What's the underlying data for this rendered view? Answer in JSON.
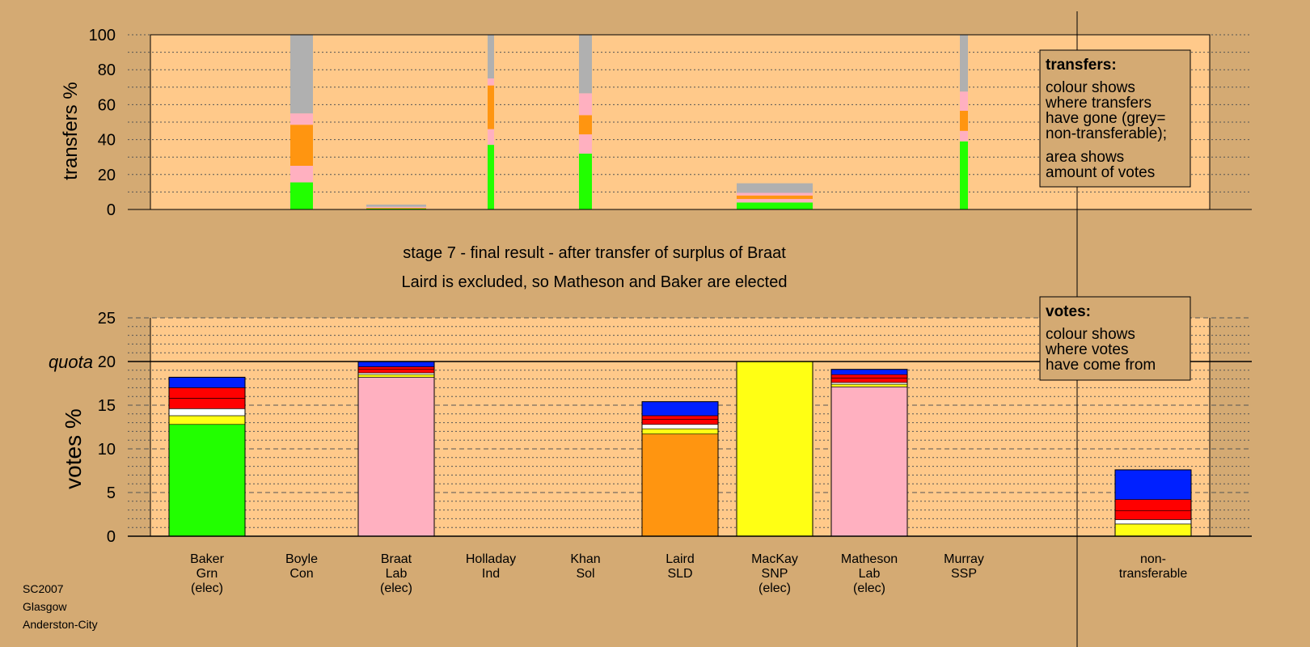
{
  "chart_data": [
    {
      "type": "bar",
      "subtype": "stacked",
      "ylabel": "transfers %",
      "ylim": [
        0,
        100
      ],
      "yticks": [
        0,
        20,
        40,
        60,
        80,
        100
      ],
      "grid": true,
      "legend": {
        "title": "transfers:",
        "lines_1": [
          "colour shows",
          "where transfers",
          "have gone (grey=",
          "non-transferable);"
        ],
        "lines_2": [
          "area shows",
          "amount of votes"
        ],
        "placement": "top-right"
      },
      "bars": [
        {
          "x_index": 1,
          "width": 0.28,
          "segments": [
            {
              "color": "#22ff00",
              "value": 15.5
            },
            {
              "color": "#ffb0c0",
              "value": 9.5
            },
            {
              "color": "#ff9510",
              "value": 23.5
            },
            {
              "color": "#ffb0c0",
              "value": 6.5
            },
            {
              "color": "#b0b0b0",
              "value": 45
            }
          ]
        },
        {
          "x_index": 2,
          "width": 0.74,
          "segments": [
            {
              "color": "#22ff00",
              "value": 0.5
            },
            {
              "color": "#ff9510",
              "value": 0.4
            },
            {
              "color": "#ffb0c0",
              "value": 0.6
            },
            {
              "color": "#b0b0b0",
              "value": 1.3
            }
          ]
        },
        {
          "x_index": 3,
          "width": 0.08,
          "segments": [
            {
              "color": "#22ff00",
              "value": 37
            },
            {
              "color": "#ffb0c0",
              "value": 9
            },
            {
              "color": "#ff9510",
              "value": 25
            },
            {
              "color": "#ffb0c0",
              "value": 4
            },
            {
              "color": "#b0b0b0",
              "value": 25
            }
          ]
        },
        {
          "x_index": 4,
          "width": 0.16,
          "segments": [
            {
              "color": "#22ff00",
              "value": 32
            },
            {
              "color": "#ffb0c0",
              "value": 11
            },
            {
              "color": "#ff9510",
              "value": 11
            },
            {
              "color": "#ffb0c0",
              "value": 12.5
            },
            {
              "color": "#b0b0b0",
              "value": 33.5
            }
          ]
        },
        {
          "x_index": 6,
          "width": 0.94,
          "segments": [
            {
              "color": "#22ff00",
              "value": 4
            },
            {
              "color": "#ffb0c0",
              "value": 2
            },
            {
              "color": "#ff9510",
              "value": 2
            },
            {
              "color": "#ffb0c0",
              "value": 1.5
            },
            {
              "color": "#b0b0b0",
              "value": 5.5
            }
          ]
        },
        {
          "x_index": 8,
          "width": 0.1,
          "segments": [
            {
              "color": "#22ff00",
              "value": 39
            },
            {
              "color": "#ffb0c0",
              "value": 6
            },
            {
              "color": "#ff9510",
              "value": 11.5
            },
            {
              "color": "#ffb0c0",
              "value": 11
            },
            {
              "color": "#b0b0b0",
              "value": 32.5
            }
          ]
        }
      ]
    },
    {
      "type": "bar",
      "subtype": "stacked",
      "ylabel": "votes %",
      "ylim": [
        0,
        25
      ],
      "yticks": [
        0,
        5,
        10,
        15,
        20,
        25
      ],
      "grid": true,
      "quota": {
        "label": "quota",
        "value": 20
      },
      "legend": {
        "title": "votes:",
        "lines": [
          "colour shows",
          "where votes",
          "have come from"
        ],
        "placement": "top-right"
      },
      "categories": [
        {
          "lines": [
            "Baker",
            "Grn",
            "(elec)"
          ]
        },
        {
          "lines": [
            "Boyle",
            "Con"
          ]
        },
        {
          "lines": [
            "Braat",
            "Lab",
            "(elec)"
          ]
        },
        {
          "lines": [
            "Holladay",
            "Ind"
          ]
        },
        {
          "lines": [
            "Khan",
            "Sol"
          ]
        },
        {
          "lines": [
            "Laird",
            "SLD"
          ]
        },
        {
          "lines": [
            "MacKay",
            "SNP",
            "(elec)"
          ]
        },
        {
          "lines": [
            "Matheson",
            "Lab",
            "(elec)"
          ]
        },
        {
          "lines": [
            "Murray",
            "SSP"
          ]
        },
        {
          "lines": [
            "non-",
            "transferable"
          ],
          "slot": 10
        }
      ],
      "bars": [
        {
          "x_index": 0,
          "segments": [
            {
              "color": "#22ff00",
              "value": 12.8
            },
            {
              "color": "#ffff14",
              "value": 1.0
            },
            {
              "color": "#ffffff",
              "value": 0.8
            },
            {
              "color": "#ff0000",
              "value": 1.2
            },
            {
              "color": "#ff0000",
              "value": 1.2
            },
            {
              "color": "#0020ff",
              "value": 1.2
            }
          ]
        },
        {
          "x_index": 2,
          "segments": [
            {
              "color": "#ffb0c0",
              "value": 18.2
            },
            {
              "color": "#ffff14",
              "value": 0.3
            },
            {
              "color": "#ffffff",
              "value": 0.2
            },
            {
              "color": "#ff0000",
              "value": 0.4
            },
            {
              "color": "#ff0000",
              "value": 0.3
            },
            {
              "color": "#0020ff",
              "value": 0.6
            }
          ]
        },
        {
          "x_index": 5,
          "segments": [
            {
              "color": "#ff9510",
              "value": 11.7
            },
            {
              "color": "#ffff14",
              "value": 0.6
            },
            {
              "color": "#ffffff",
              "value": 0.5
            },
            {
              "color": "#ff0000",
              "value": 0.6
            },
            {
              "color": "#ff0000",
              "value": 0.4
            },
            {
              "color": "#0020ff",
              "value": 1.6
            }
          ]
        },
        {
          "x_index": 6,
          "segments": [
            {
              "color": "#ffff14",
              "value": 20
            }
          ]
        },
        {
          "x_index": 7,
          "segments": [
            {
              "color": "#ffb0c0",
              "value": 17.1
            },
            {
              "color": "#ffff14",
              "value": 0.3
            },
            {
              "color": "#ffffff",
              "value": 0.2
            },
            {
              "color": "#ff0000",
              "value": 0.5
            },
            {
              "color": "#ff0000",
              "value": 0.4
            },
            {
              "color": "#0020ff",
              "value": 0.6
            }
          ]
        },
        {
          "x_index": 10,
          "segments": [
            {
              "color": "#ffff14",
              "value": 1.4
            },
            {
              "color": "#ffffff",
              "value": 0.5
            },
            {
              "color": "#ff0000",
              "value": 1.0
            },
            {
              "color": "#ff0000",
              "value": 1.3
            },
            {
              "color": "#0020ff",
              "value": 3.4
            }
          ]
        }
      ]
    }
  ],
  "stage_title": "stage 7 - final result - after transfer of surplus of Braat",
  "stage_result": "Laird is excluded, so Matheson and Baker are elected",
  "footer": {
    "election": "SC2007",
    "region": "Glasgow",
    "constituency": "Anderston-City"
  },
  "colors": {
    "background": "#d4aa73",
    "plot_background": "#ffc98a",
    "Grn": "#22ff00",
    "Lab": "#ffb0c0",
    "SLD": "#ff9510",
    "SNP": "#ffff14",
    "Con": "#0020ff",
    "SSP": "#ff0000",
    "non_transferable": "#b0b0b0"
  }
}
